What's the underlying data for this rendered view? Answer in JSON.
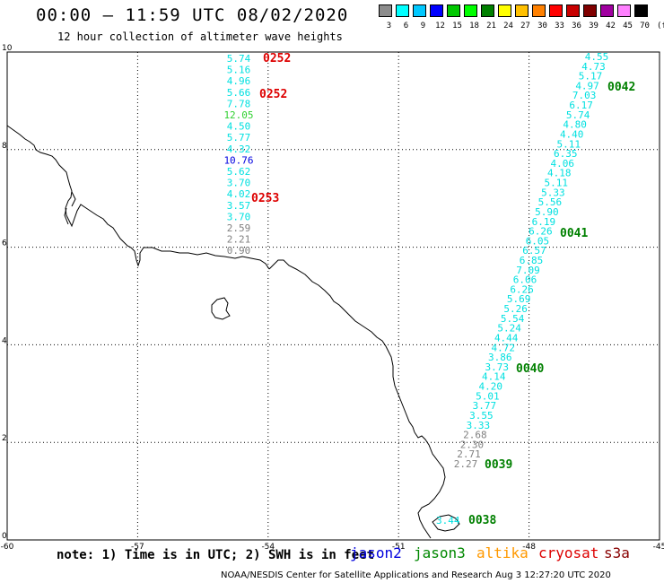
{
  "title": "00:00 – 11:59 UTC 08/02/2020",
  "subtitle": "12 hour collection of altimeter wave heights",
  "legend": {
    "labels": [
      "3",
      "6",
      "9",
      "12",
      "15",
      "18",
      "21",
      "24",
      "27",
      "30",
      "33",
      "36",
      "39",
      "42",
      "45",
      "70"
    ],
    "colors": [
      "#8c8c8c",
      "#00ffff",
      "#00c8ff",
      "#0000ff",
      "#00c800",
      "#00ff00",
      "#008000",
      "#ffff00",
      "#ffc000",
      "#ff8000",
      "#ff0000",
      "#c80000",
      "#800000",
      "#a000a0",
      "#ff80ff",
      "#000000"
    ],
    "unit": "(ft)"
  },
  "axes": {
    "x_ticks": [
      "-60",
      "-57",
      "-54",
      "-51",
      "-48",
      "-45"
    ],
    "y_ticks": [
      "0",
      "2",
      "4",
      "6",
      "8",
      "10"
    ],
    "xlim": [
      -60,
      -45
    ],
    "ylim": [
      0,
      10
    ]
  },
  "pass_labels": [
    "0252",
    "0252",
    "0253",
    "0042",
    "0041",
    "0040",
    "0039",
    "0038"
  ],
  "track_west": [
    {
      "v": "5.74",
      "c": "#00e0e0"
    },
    {
      "v": "5.16",
      "c": "#00e0e0"
    },
    {
      "v": "4.96",
      "c": "#00e0e0"
    },
    {
      "v": "5.66",
      "c": "#00e0e0"
    },
    {
      "v": "7.78",
      "c": "#00e0e0"
    },
    {
      "v": "12.05",
      "c": "#30d030"
    },
    {
      "v": "4.50",
      "c": "#00e0e0"
    },
    {
      "v": "5.77",
      "c": "#00e0e0"
    },
    {
      "v": "4.32",
      "c": "#00e0e0"
    },
    {
      "v": "10.76",
      "c": "#0000e0"
    },
    {
      "v": "5.62",
      "c": "#00e0e0"
    },
    {
      "v": "3.70",
      "c": "#00e0e0"
    },
    {
      "v": "4.02",
      "c": "#00e0e0"
    },
    {
      "v": "3.57",
      "c": "#00e0e0"
    },
    {
      "v": "3.70",
      "c": "#00e0e0"
    },
    {
      "v": "2.59",
      "c": "#808080"
    },
    {
      "v": "2.21",
      "c": "#808080"
    },
    {
      "v": "0.90",
      "c": "#808080"
    }
  ],
  "track_east": [
    {
      "v": "4.55",
      "c": "#00e0e0"
    },
    {
      "v": "4.73",
      "c": "#00e0e0"
    },
    {
      "v": "5.17",
      "c": "#00e0e0"
    },
    {
      "v": "4.97",
      "c": "#00e0e0"
    },
    {
      "v": "7.03",
      "c": "#00e0e0"
    },
    {
      "v": "6.17",
      "c": "#00e0e0"
    },
    {
      "v": "5.74",
      "c": "#00e0e0"
    },
    {
      "v": "4.80",
      "c": "#00e0e0"
    },
    {
      "v": "4.40",
      "c": "#00e0e0"
    },
    {
      "v": "5.11",
      "c": "#00e0e0"
    },
    {
      "v": "6.35",
      "c": "#00e0e0"
    },
    {
      "v": "4.06",
      "c": "#00e0e0"
    },
    {
      "v": "4.18",
      "c": "#00e0e0"
    },
    {
      "v": "5.11",
      "c": "#00e0e0"
    },
    {
      "v": "5.33",
      "c": "#00e0e0"
    },
    {
      "v": "5.56",
      "c": "#00e0e0"
    },
    {
      "v": "5.90",
      "c": "#00e0e0"
    },
    {
      "v": "6.19",
      "c": "#00e0e0"
    },
    {
      "v": "6.26",
      "c": "#00e0e0"
    },
    {
      "v": "6.05",
      "c": "#00e0e0"
    },
    {
      "v": "6.57",
      "c": "#00e0e0"
    },
    {
      "v": "6.85",
      "c": "#00e0e0"
    },
    {
      "v": "7.09",
      "c": "#00e0e0"
    },
    {
      "v": "6.06",
      "c": "#00e0e0"
    },
    {
      "v": "6.26",
      "c": "#00e0e0"
    },
    {
      "v": "5.69",
      "c": "#00e0e0"
    },
    {
      "v": "5.26",
      "c": "#00e0e0"
    },
    {
      "v": "5.54",
      "c": "#00e0e0"
    },
    {
      "v": "5.24",
      "c": "#00e0e0"
    },
    {
      "v": "4.44",
      "c": "#00e0e0"
    },
    {
      "v": "4.72",
      "c": "#00e0e0"
    },
    {
      "v": "3.86",
      "c": "#00e0e0"
    },
    {
      "v": "3.73",
      "c": "#00e0e0"
    },
    {
      "v": "4.14",
      "c": "#00e0e0"
    },
    {
      "v": "4.20",
      "c": "#00e0e0"
    },
    {
      "v": "5.01",
      "c": "#00e0e0"
    },
    {
      "v": "3.77",
      "c": "#00e0e0"
    },
    {
      "v": "3.55",
      "c": "#00e0e0"
    },
    {
      "v": "3.33",
      "c": "#00e0e0"
    },
    {
      "v": "2.68",
      "c": "#808080"
    },
    {
      "v": "2.30",
      "c": "#808080"
    },
    {
      "v": "2.71",
      "c": "#808080"
    },
    {
      "v": "2.27",
      "c": "#808080"
    }
  ],
  "south_value": "3.44",
  "note": "note: 1) Time is in UTC; 2) SWH is in feet",
  "satellites": [
    {
      "name": "jason2",
      "color": "#0000dd"
    },
    {
      "name": "jason3",
      "color": "#008800"
    },
    {
      "name": "altika",
      "color": "#ff9900"
    },
    {
      "name": "cryosat",
      "color": "#dd0000"
    },
    {
      "name": "s3a",
      "color": "#880000"
    }
  ],
  "credit": "NOAA/NESDIS Center for Satellite Applications and Research    Aug  3 12:27:20 UTC 2020"
}
